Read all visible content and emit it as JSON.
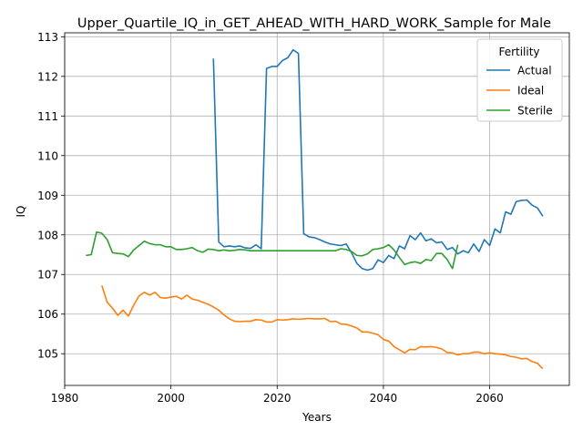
{
  "chart_data": {
    "type": "line",
    "title": "Upper_Quartile_IQ_in_GET_AHEAD_WITH_HARD_WORK_Sample for Male",
    "xlabel": "Years",
    "ylabel": "IQ",
    "xlim": [
      1980,
      2075
    ],
    "ylim": [
      104.2,
      113.1
    ],
    "xticks": [
      1980,
      2000,
      2020,
      2040,
      2060
    ],
    "yticks": [
      105,
      106,
      107,
      108,
      109,
      110,
      111,
      112,
      113
    ],
    "grid": true,
    "legend": {
      "title": "Fertility",
      "position": "top-right"
    },
    "series": [
      {
        "name": "Actual",
        "color": "#1f77b4",
        "points": [
          [
            2008,
            112.45
          ],
          [
            2009,
            107.82
          ],
          [
            2010,
            107.7
          ],
          [
            2011,
            107.72
          ],
          [
            2012,
            107.7
          ],
          [
            2013,
            107.72
          ],
          [
            2014,
            107.67
          ],
          [
            2015,
            107.66
          ],
          [
            2016,
            107.75
          ],
          [
            2017,
            107.65
          ],
          [
            2018,
            112.2
          ],
          [
            2019,
            112.25
          ],
          [
            2020,
            112.25
          ],
          [
            2021,
            112.4
          ],
          [
            2022,
            112.47
          ],
          [
            2023,
            112.67
          ],
          [
            2024,
            112.58
          ],
          [
            2025,
            108.03
          ],
          [
            2026,
            107.95
          ],
          [
            2027,
            107.93
          ],
          [
            2028,
            107.88
          ],
          [
            2029,
            107.82
          ],
          [
            2030,
            107.77
          ],
          [
            2031,
            107.75
          ],
          [
            2032,
            107.73
          ],
          [
            2033,
            107.77
          ],
          [
            2034,
            107.55
          ],
          [
            2035,
            107.28
          ],
          [
            2036,
            107.15
          ],
          [
            2037,
            107.11
          ],
          [
            2038,
            107.15
          ],
          [
            2039,
            107.37
          ],
          [
            2040,
            107.3
          ],
          [
            2041,
            107.48
          ],
          [
            2042,
            107.4
          ],
          [
            2043,
            107.72
          ],
          [
            2044,
            107.65
          ],
          [
            2045,
            107.98
          ],
          [
            2046,
            107.88
          ],
          [
            2047,
            108.05
          ],
          [
            2048,
            107.85
          ],
          [
            2049,
            107.9
          ],
          [
            2050,
            107.8
          ],
          [
            2051,
            107.82
          ],
          [
            2052,
            107.63
          ],
          [
            2053,
            107.68
          ],
          [
            2054,
            107.52
          ],
          [
            2055,
            107.6
          ],
          [
            2056,
            107.55
          ],
          [
            2057,
            107.77
          ],
          [
            2058,
            107.58
          ],
          [
            2059,
            107.88
          ],
          [
            2060,
            107.73
          ],
          [
            2061,
            108.15
          ],
          [
            2062,
            108.05
          ],
          [
            2063,
            108.58
          ],
          [
            2064,
            108.52
          ],
          [
            2065,
            108.84
          ],
          [
            2066,
            108.87
          ],
          [
            2067,
            108.88
          ],
          [
            2068,
            108.75
          ],
          [
            2069,
            108.68
          ],
          [
            2070,
            108.47
          ]
        ]
      },
      {
        "name": "Ideal",
        "color": "#ff7f0e",
        "points": [
          [
            1987,
            106.72
          ],
          [
            1988,
            106.3
          ],
          [
            1989,
            106.15
          ],
          [
            1990,
            105.97
          ],
          [
            1991,
            106.1
          ],
          [
            1992,
            105.95
          ],
          [
            1993,
            106.23
          ],
          [
            1994,
            106.46
          ],
          [
            1995,
            106.55
          ],
          [
            1996,
            106.48
          ],
          [
            1997,
            106.55
          ],
          [
            1998,
            106.42
          ],
          [
            1999,
            106.4
          ],
          [
            2000,
            106.43
          ],
          [
            2001,
            106.45
          ],
          [
            2002,
            106.38
          ],
          [
            2003,
            106.48
          ],
          [
            2004,
            106.38
          ],
          [
            2005,
            106.35
          ],
          [
            2006,
            106.3
          ],
          [
            2007,
            106.25
          ],
          [
            2008,
            106.18
          ],
          [
            2009,
            106.1
          ],
          [
            2010,
            105.98
          ],
          [
            2011,
            105.88
          ],
          [
            2012,
            105.82
          ],
          [
            2013,
            105.81
          ],
          [
            2014,
            105.82
          ],
          [
            2015,
            105.82
          ],
          [
            2016,
            105.86
          ],
          [
            2017,
            105.85
          ],
          [
            2018,
            105.8
          ],
          [
            2019,
            105.8
          ],
          [
            2020,
            105.86
          ],
          [
            2021,
            105.85
          ],
          [
            2022,
            105.86
          ],
          [
            2023,
            105.88
          ],
          [
            2024,
            105.87
          ],
          [
            2025,
            105.88
          ],
          [
            2026,
            105.89
          ],
          [
            2027,
            105.88
          ],
          [
            2028,
            105.88
          ],
          [
            2029,
            105.89
          ],
          [
            2030,
            105.81
          ],
          [
            2031,
            105.82
          ],
          [
            2032,
            105.75
          ],
          [
            2033,
            105.74
          ],
          [
            2034,
            105.7
          ],
          [
            2035,
            105.65
          ],
          [
            2036,
            105.55
          ],
          [
            2037,
            105.55
          ],
          [
            2038,
            105.52
          ],
          [
            2039,
            105.48
          ],
          [
            2040,
            105.36
          ],
          [
            2041,
            105.32
          ],
          [
            2042,
            105.18
          ],
          [
            2043,
            105.1
          ],
          [
            2044,
            105.02
          ],
          [
            2045,
            105.11
          ],
          [
            2046,
            105.1
          ],
          [
            2047,
            105.18
          ],
          [
            2048,
            105.17
          ],
          [
            2049,
            105.18
          ],
          [
            2050,
            105.16
          ],
          [
            2051,
            105.12
          ],
          [
            2052,
            105.03
          ],
          [
            2053,
            105.02
          ],
          [
            2054,
            104.97
          ],
          [
            2055,
            105.0
          ],
          [
            2056,
            105.0
          ],
          [
            2057,
            105.04
          ],
          [
            2058,
            105.04
          ],
          [
            2059,
            105.0
          ],
          [
            2060,
            105.02
          ],
          [
            2061,
            105.0
          ],
          [
            2062,
            104.99
          ],
          [
            2063,
            104.97
          ],
          [
            2064,
            104.93
          ],
          [
            2065,
            104.91
          ],
          [
            2066,
            104.87
          ],
          [
            2067,
            104.88
          ],
          [
            2068,
            104.8
          ],
          [
            2069,
            104.76
          ],
          [
            2070,
            104.62
          ]
        ]
      },
      {
        "name": "Sterile",
        "color": "#2ca02c",
        "points": [
          [
            1984,
            107.48
          ],
          [
            1985,
            107.5
          ],
          [
            1986,
            108.07
          ],
          [
            1987,
            108.04
          ],
          [
            1988,
            107.88
          ],
          [
            1989,
            107.55
          ],
          [
            1990,
            107.53
          ],
          [
            1991,
            107.52
          ],
          [
            1992,
            107.45
          ],
          [
            1993,
            107.62
          ],
          [
            1994,
            107.73
          ],
          [
            1995,
            107.84
          ],
          [
            1996,
            107.78
          ],
          [
            1997,
            107.75
          ],
          [
            1998,
            107.75
          ],
          [
            1999,
            107.7
          ],
          [
            2000,
            107.7
          ],
          [
            2001,
            107.63
          ],
          [
            2002,
            107.63
          ],
          [
            2003,
            107.65
          ],
          [
            2004,
            107.68
          ],
          [
            2005,
            107.6
          ],
          [
            2006,
            107.56
          ],
          [
            2007,
            107.64
          ],
          [
            2008,
            107.63
          ],
          [
            2009,
            107.6
          ],
          [
            2010,
            107.62
          ],
          [
            2011,
            107.6
          ],
          [
            2012,
            107.61
          ],
          [
            2013,
            107.63
          ],
          [
            2014,
            107.62
          ],
          [
            2015,
            107.6
          ],
          [
            2016,
            107.6
          ],
          [
            2017,
            107.6
          ],
          [
            2018,
            107.6
          ],
          [
            2019,
            107.6
          ],
          [
            2020,
            107.6
          ],
          [
            2021,
            107.6
          ],
          [
            2022,
            107.6
          ],
          [
            2023,
            107.6
          ],
          [
            2024,
            107.6
          ],
          [
            2025,
            107.6
          ],
          [
            2026,
            107.6
          ],
          [
            2027,
            107.6
          ],
          [
            2028,
            107.6
          ],
          [
            2029,
            107.6
          ],
          [
            2030,
            107.6
          ],
          [
            2031,
            107.6
          ],
          [
            2032,
            107.65
          ],
          [
            2033,
            107.63
          ],
          [
            2034,
            107.58
          ],
          [
            2035,
            107.48
          ],
          [
            2036,
            107.47
          ],
          [
            2037,
            107.52
          ],
          [
            2038,
            107.63
          ],
          [
            2039,
            107.65
          ],
          [
            2040,
            107.68
          ],
          [
            2041,
            107.75
          ],
          [
            2042,
            107.62
          ],
          [
            2043,
            107.43
          ],
          [
            2044,
            107.25
          ],
          [
            2045,
            107.3
          ],
          [
            2046,
            107.32
          ],
          [
            2047,
            107.28
          ],
          [
            2048,
            107.38
          ],
          [
            2049,
            107.35
          ],
          [
            2050,
            107.53
          ],
          [
            2051,
            107.53
          ],
          [
            2052,
            107.38
          ],
          [
            2053,
            107.15
          ],
          [
            2054,
            107.75
          ]
        ]
      }
    ]
  }
}
